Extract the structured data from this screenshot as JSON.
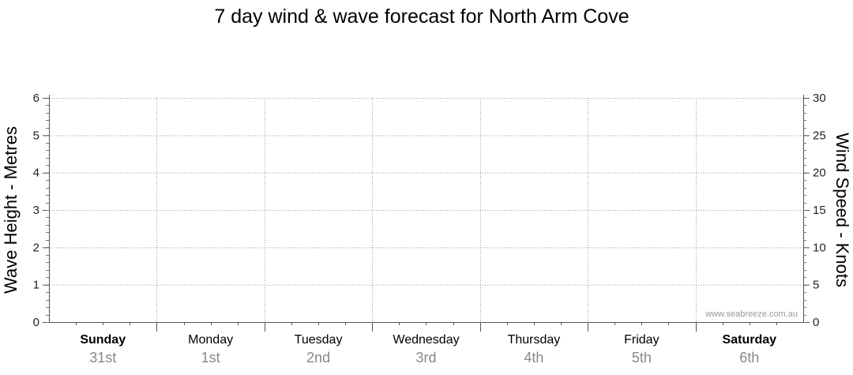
{
  "chart_data": {
    "type": "line",
    "title": "7 day wind & wave forecast for North Arm Cove",
    "left_axis": {
      "label": "Wave Height - Metres",
      "ticks": [
        0,
        1,
        2,
        3,
        4,
        5,
        6
      ],
      "ylim": [
        0,
        6
      ]
    },
    "right_axis": {
      "label": "Wind Speed - Knots",
      "ticks": [
        0,
        5,
        10,
        15,
        20,
        25,
        30
      ],
      "ylim": [
        0,
        30
      ]
    },
    "days": [
      {
        "name": "Sunday",
        "date": "31st",
        "bold": true
      },
      {
        "name": "Monday",
        "date": "1st",
        "bold": false
      },
      {
        "name": "Tuesday",
        "date": "2nd",
        "bold": false
      },
      {
        "name": "Wednesday",
        "date": "3rd",
        "bold": false
      },
      {
        "name": "Thursday",
        "date": "4th",
        "bold": false
      },
      {
        "name": "Friday",
        "date": "5th",
        "bold": false
      },
      {
        "name": "Saturday",
        "date": "6th",
        "bold": true
      }
    ],
    "series": [],
    "grid": true,
    "watermark": "www.seabreeze.com.au"
  }
}
